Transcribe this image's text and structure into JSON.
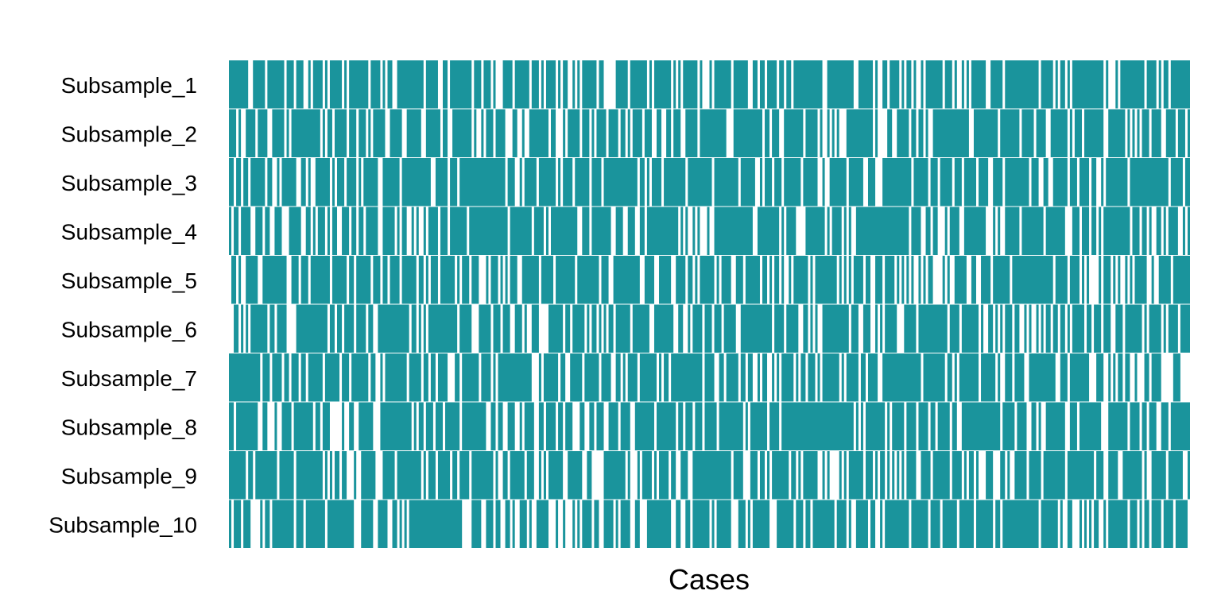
{
  "chart_data": {
    "type": "heatmap",
    "title": "",
    "xlabel": "Cases",
    "ylabel": "",
    "grid": false,
    "legend": "none",
    "n_cases": 400,
    "fill_color": "#1a949c",
    "background_color": "#ffffff",
    "encoding": "1 = case included in subsample (teal), 0 = not included (white)",
    "rows": [
      {
        "label": "Subsample_1",
        "included_fraction": 0.75
      },
      {
        "label": "Subsample_2",
        "included_fraction": 0.75
      },
      {
        "label": "Subsample_3",
        "included_fraction": 0.75
      },
      {
        "label": "Subsample_4",
        "included_fraction": 0.75
      },
      {
        "label": "Subsample_5",
        "included_fraction": 0.75
      },
      {
        "label": "Subsample_6",
        "included_fraction": 0.75
      },
      {
        "label": "Subsample_7",
        "included_fraction": 0.75
      },
      {
        "label": "Subsample_8",
        "included_fraction": 0.75
      },
      {
        "label": "Subsample_9",
        "included_fraction": 0.75
      },
      {
        "label": "Subsample_10",
        "included_fraction": 0.75
      }
    ]
  }
}
